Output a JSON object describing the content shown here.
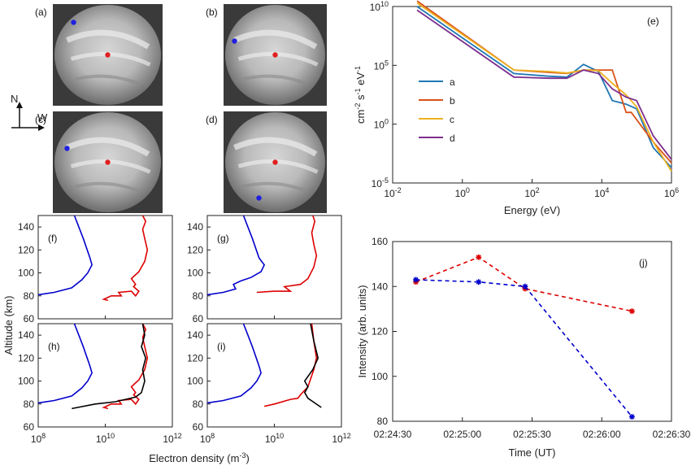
{
  "compass": {
    "north": "N",
    "west": "W"
  },
  "images": [
    {
      "label": "(a)",
      "dots": [
        {
          "color": "#2020e0",
          "pos": "upper-left"
        },
        {
          "color": "#e02020",
          "pos": "center"
        }
      ]
    },
    {
      "label": "(b)",
      "dots": [
        {
          "color": "#2020e0",
          "pos": "left"
        },
        {
          "color": "#e02020",
          "pos": "center"
        }
      ]
    },
    {
      "label": "(c)",
      "dots": [
        {
          "color": "#2020e0",
          "pos": "left"
        },
        {
          "color": "#e02020",
          "pos": "center"
        }
      ]
    },
    {
      "label": "(d)",
      "dots": [
        {
          "color": "#2020e0",
          "pos": "lower-left"
        },
        {
          "color": "#e02020",
          "pos": "center"
        }
      ]
    }
  ],
  "chart_data": [
    {
      "id": "e",
      "panel_label": "(e)",
      "type": "line",
      "x_scale": "log",
      "y_scale": "log",
      "xlabel": "Energy (eV)",
      "ylabel": "cm-2 s-1 eV-1",
      "xlim": [
        0.01,
        1000000
      ],
      "ylim": [
        1e-05,
        10000000000
      ],
      "xticks": [
        {
          "v": 0.01,
          "base": "10",
          "exp": "-2"
        },
        {
          "v": 1,
          "base": "10",
          "exp": "0"
        },
        {
          "v": 100,
          "base": "10",
          "exp": "2"
        },
        {
          "v": 10000,
          "base": "10",
          "exp": "4"
        },
        {
          "v": 1000000,
          "base": "10",
          "exp": "6"
        }
      ],
      "yticks": [
        {
          "v": 1e-05,
          "base": "10",
          "exp": "-5"
        },
        {
          "v": 1,
          "base": "10",
          "exp": "0"
        },
        {
          "v": 100000,
          "base": "10",
          "exp": "5"
        },
        {
          "v": 10000000000,
          "base": "10",
          "exp": "10"
        }
      ],
      "legend_position": "left",
      "series": [
        {
          "name": "a",
          "color": "#1f77b4",
          "x": [
            0.05,
            30,
            300,
            1000,
            3000,
            8000,
            20000,
            50000,
            100000,
            300000,
            1000000
          ],
          "y": [
            10000000000,
            20000,
            12000,
            10000,
            120000,
            30000,
            100,
            50,
            20,
            0.01,
            0.0002
          ]
        },
        {
          "name": "b",
          "color": "#d95319",
          "x": [
            0.05,
            30,
            300,
            1000,
            3000,
            8000,
            20000,
            50000,
            70000,
            300000,
            1000000
          ],
          "y": [
            30000000000,
            40000,
            25000,
            20000,
            40000,
            40000,
            40000,
            10,
            10,
            0.03,
            0.0005
          ]
        },
        {
          "name": "c",
          "color": "#edb120",
          "x": [
            0.05,
            30,
            300,
            1000,
            3000,
            8000,
            20000,
            50000,
            100000,
            300000,
            1000000
          ],
          "y": [
            20000000000,
            40000,
            30000,
            22000,
            40000,
            35000,
            3000,
            300,
            30,
            0.03,
            0.0001
          ]
        },
        {
          "name": "d",
          "color": "#7e2f8e",
          "x": [
            0.05,
            30,
            300,
            1000,
            3000,
            8000,
            20000,
            50000,
            100000,
            300000,
            1000000
          ],
          "y": [
            5000000000,
            10000,
            8000,
            8000,
            40000,
            20000,
            1000,
            200,
            100,
            0.1,
            0.001
          ]
        }
      ]
    },
    {
      "id": "f",
      "panel_label": "(f)",
      "type": "line",
      "x_scale": "log",
      "xlim": [
        100000000,
        1000000000000
      ],
      "ylim": [
        60,
        150
      ],
      "yticks": [
        60,
        80,
        100,
        120,
        140
      ],
      "series": [
        {
          "color": "#0000cc",
          "x": [
            100000000,
            300000000,
            1000000000,
            2000000000,
            3000000000,
            4000000000,
            3500000000,
            2200000000,
            1200000000
          ],
          "y": [
            81,
            83,
            87,
            94,
            100,
            107,
            113,
            130,
            150
          ]
        },
        {
          "color": "#dd0000",
          "x": [
            12000000000,
            9000000000,
            15000000000,
            30000000000,
            25000000000,
            60000000000,
            80000000000,
            100000000000,
            70000000000,
            80000000000,
            60000000000,
            100000000000,
            150000000000,
            180000000000,
            150000000000,
            130000000000,
            160000000000,
            130000000000
          ],
          "y": [
            76,
            77,
            80,
            80,
            83,
            84,
            80,
            84,
            88,
            90,
            95,
            101,
            110,
            120,
            130,
            138,
            145,
            150
          ]
        }
      ]
    },
    {
      "id": "g",
      "panel_label": "(g)",
      "type": "line",
      "x_scale": "log",
      "xlim": [
        100000000,
        1000000000000
      ],
      "ylim": [
        60,
        150
      ],
      "yticks": [
        60,
        80,
        100,
        120,
        140
      ],
      "series": [
        {
          "color": "#0000cc",
          "x": [
            100000000,
            300000000,
            700000000,
            600000000,
            1000000000,
            2000000000,
            4000000000,
            5000000000,
            3500000000,
            2200000000,
            1200000000
          ],
          "y": [
            81,
            83,
            86,
            90,
            93,
            96,
            101,
            107,
            113,
            130,
            150
          ]
        },
        {
          "color": "#dd0000",
          "x": [
            3000000000,
            10000000000,
            30000000000,
            20000000000,
            60000000000,
            100000000000,
            150000000000,
            180000000000,
            150000000000,
            130000000000,
            160000000000,
            140000000000
          ],
          "y": [
            83,
            84,
            84,
            88,
            90,
            95,
            105,
            115,
            125,
            135,
            145,
            150
          ]
        }
      ]
    },
    {
      "id": "h",
      "panel_label": "(h)",
      "type": "line",
      "x_scale": "log",
      "xlim": [
        100000000,
        1000000000000
      ],
      "ylim": [
        60,
        150
      ],
      "yticks": [
        60,
        80,
        100,
        120,
        140
      ],
      "series": [
        {
          "color": "#0000cc",
          "x": [
            100000000,
            300000000,
            1000000000,
            2000000000,
            3000000000,
            4000000000,
            3500000000,
            2200000000,
            1200000000
          ],
          "y": [
            81,
            83,
            87,
            94,
            100,
            107,
            113,
            130,
            150
          ]
        },
        {
          "color": "#dd0000",
          "x": [
            12000000000,
            9000000000,
            15000000000,
            30000000000,
            25000000000,
            60000000000,
            80000000000,
            100000000000,
            70000000000,
            80000000000,
            60000000000,
            100000000000,
            150000000000,
            180000000000,
            150000000000,
            130000000000,
            160000000000,
            130000000000
          ],
          "y": [
            76,
            77,
            80,
            80,
            83,
            84,
            80,
            84,
            88,
            90,
            95,
            101,
            110,
            120,
            130,
            138,
            145,
            150
          ]
        },
        {
          "color": "#000000",
          "x": [
            1000000000,
            5000000000,
            20000000000,
            40000000000,
            80000000000,
            120000000000,
            150000000000,
            130000000000,
            160000000000,
            120000000000,
            150000000000,
            130000000000
          ],
          "y": [
            76,
            80,
            82,
            84,
            86,
            90,
            100,
            110,
            120,
            130,
            140,
            150
          ]
        }
      ]
    },
    {
      "id": "i",
      "panel_label": "(i)",
      "type": "line",
      "x_scale": "log",
      "xlim": [
        100000000,
        1000000000000
      ],
      "ylim": [
        60,
        150
      ],
      "yticks": [
        60,
        80,
        100,
        120,
        140
      ],
      "series": [
        {
          "color": "#0000cc",
          "x": [
            100000000,
            300000000,
            1000000000,
            2000000000,
            3000000000,
            4000000000,
            3500000000,
            2200000000,
            1200000000
          ],
          "y": [
            81,
            83,
            87,
            94,
            100,
            107,
            113,
            130,
            150
          ]
        },
        {
          "color": "#dd0000",
          "x": [
            5000000000,
            10000000000,
            30000000000,
            50000000000,
            60000000000,
            100000000000,
            150000000000,
            180000000000,
            150000000000,
            130000000000
          ],
          "y": [
            78,
            80,
            84,
            85,
            88,
            95,
            110,
            120,
            135,
            150
          ]
        },
        {
          "color": "#000000",
          "x": [
            250000000000,
            100000000000,
            80000000000,
            100000000000,
            80000000000,
            140000000000,
            200000000000,
            150000000000,
            120000000000
          ],
          "y": [
            77,
            85,
            90,
            95,
            100,
            110,
            120,
            135,
            150
          ]
        }
      ]
    },
    {
      "id": "j",
      "panel_label": "(j)",
      "type": "line",
      "xlabel": "Time (UT)",
      "ylabel": "Intensity (arb. units)",
      "ylim": [
        80,
        160
      ],
      "yticks": [
        80,
        100,
        120,
        140,
        160
      ],
      "xticks": [
        "02:24:30",
        "02:25:00",
        "02:25:30",
        "02:26:00",
        "02:26:30"
      ],
      "xlim_seconds_of_day": [
        8670,
        8790
      ],
      "series": [
        {
          "color": "#dd0000",
          "x": [
            "02:24:40",
            "02:25:07",
            "02:25:27",
            "02:26:13"
          ],
          "x_seconds_of_day": [
            8680,
            8707,
            8727,
            8773
          ],
          "y": [
            142,
            153,
            139,
            129
          ]
        },
        {
          "color": "#0000cc",
          "x": [
            "02:24:40",
            "02:25:07",
            "02:25:27",
            "02:26:13"
          ],
          "x_seconds_of_day": [
            8680,
            8707,
            8727,
            8773
          ],
          "y": [
            143,
            142,
            140,
            82
          ]
        }
      ]
    }
  ],
  "profiles_shared": {
    "xlabel": "Electron density (m",
    "xlabel_sup": "-3",
    "xlabel_tail": ")",
    "ylabel": "Altitude (km)",
    "xticks": [
      {
        "v": 100000000,
        "base": "10",
        "exp": "8"
      },
      {
        "v": 10000000000,
        "base": "10",
        "exp": "10"
      },
      {
        "v": 1000000000000,
        "base": "10",
        "exp": "12"
      }
    ]
  }
}
